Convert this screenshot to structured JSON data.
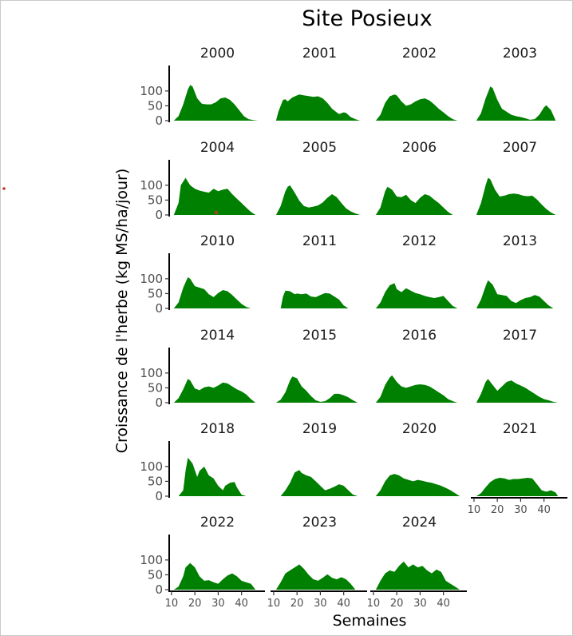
{
  "chart_data": {
    "type": "area",
    "title": "Site Posieux",
    "xlabel": "Semaines",
    "ylabel": "Croissance de l'herbe (kg MS/ha/jour)",
    "xlim": [
      9,
      49
    ],
    "ylim": [
      0,
      140
    ],
    "x_ticks": [
      10,
      20,
      30,
      40
    ],
    "y_ticks": [
      0,
      50,
      100
    ],
    "color": "#008000",
    "facets": [
      {
        "year": "2000",
        "x": [
          11,
          13,
          15,
          17,
          18,
          19,
          21,
          23,
          25,
          27,
          29,
          31,
          33,
          35,
          37,
          39,
          41,
          43,
          45,
          47
        ],
        "y": [
          0,
          15,
          55,
          105,
          120,
          115,
          75,
          57,
          55,
          55,
          62,
          75,
          78,
          70,
          55,
          35,
          15,
          5,
          2,
          0
        ]
      },
      {
        "year": "2001",
        "x": [
          11,
          12,
          14,
          15,
          16,
          18,
          20,
          21,
          23,
          25,
          27,
          29,
          31,
          33,
          35,
          37,
          38,
          40,
          41,
          43,
          45,
          47
        ],
        "y": [
          0,
          30,
          70,
          72,
          65,
          78,
          85,
          88,
          85,
          83,
          80,
          82,
          75,
          60,
          40,
          28,
          22,
          28,
          26,
          12,
          5,
          0
        ]
      },
      {
        "year": "2002",
        "x": [
          11,
          13,
          15,
          17,
          19,
          20,
          22,
          24,
          26,
          28,
          30,
          32,
          34,
          36,
          38,
          40,
          42,
          44,
          46
        ],
        "y": [
          0,
          20,
          60,
          82,
          88,
          85,
          65,
          50,
          55,
          65,
          72,
          75,
          68,
          55,
          40,
          28,
          15,
          5,
          0
        ]
      },
      {
        "year": "2003",
        "x": [
          11,
          13,
          15,
          17,
          18,
          20,
          22,
          24,
          26,
          28,
          30,
          32,
          34,
          36,
          38,
          40,
          41,
          43,
          45
        ],
        "y": [
          0,
          25,
          75,
          115,
          110,
          70,
          40,
          30,
          20,
          15,
          12,
          8,
          3,
          5,
          20,
          45,
          52,
          35,
          0
        ]
      },
      {
        "year": "2004",
        "x": [
          11,
          13,
          14,
          16,
          18,
          20,
          22,
          24,
          26,
          28,
          30,
          32,
          34,
          36,
          38,
          40,
          42,
          44,
          46
        ],
        "y": [
          0,
          40,
          100,
          125,
          100,
          88,
          82,
          78,
          75,
          88,
          80,
          85,
          88,
          70,
          55,
          40,
          25,
          10,
          0
        ]
      },
      {
        "year": "2005",
        "x": [
          11,
          13,
          15,
          16,
          17,
          19,
          21,
          23,
          25,
          27,
          29,
          31,
          33,
          35,
          37,
          39,
          41,
          43,
          45,
          47
        ],
        "y": [
          0,
          30,
          80,
          95,
          100,
          75,
          48,
          30,
          25,
          28,
          32,
          42,
          58,
          70,
          60,
          40,
          22,
          12,
          5,
          0
        ]
      },
      {
        "year": "2006",
        "x": [
          11,
          13,
          15,
          16,
          18,
          20,
          22,
          24,
          26,
          28,
          30,
          32,
          34,
          36,
          38,
          40,
          42,
          44
        ],
        "y": [
          0,
          25,
          80,
          95,
          85,
          62,
          60,
          68,
          50,
          40,
          58,
          70,
          65,
          52,
          40,
          25,
          10,
          0
        ]
      },
      {
        "year": "2007",
        "x": [
          11,
          13,
          15,
          16,
          17,
          19,
          21,
          23,
          25,
          27,
          29,
          31,
          33,
          35,
          37,
          39,
          41,
          43,
          45
        ],
        "y": [
          0,
          40,
          100,
          125,
          120,
          85,
          62,
          65,
          70,
          72,
          70,
          65,
          63,
          65,
          52,
          35,
          20,
          8,
          0
        ]
      },
      {
        "year": "2010",
        "x": [
          11,
          13,
          15,
          17,
          18,
          20,
          22,
          24,
          26,
          28,
          30,
          32,
          34,
          36,
          38,
          40,
          42,
          44
        ],
        "y": [
          0,
          20,
          70,
          105,
          100,
          75,
          70,
          65,
          48,
          38,
          52,
          62,
          58,
          45,
          30,
          15,
          5,
          0
        ]
      },
      {
        "year": "2011",
        "x": [
          13,
          14,
          15,
          17,
          19,
          20,
          22,
          24,
          26,
          28,
          30,
          32,
          34,
          36,
          38,
          40,
          42
        ],
        "y": [
          0,
          40,
          60,
          58,
          48,
          50,
          48,
          50,
          40,
          38,
          45,
          52,
          50,
          40,
          30,
          10,
          0
        ]
      },
      {
        "year": "2012",
        "x": [
          11,
          13,
          15,
          17,
          19,
          20,
          22,
          24,
          26,
          28,
          30,
          32,
          34,
          36,
          38,
          40,
          42,
          44,
          46
        ],
        "y": [
          0,
          20,
          55,
          78,
          85,
          65,
          55,
          68,
          60,
          52,
          48,
          42,
          38,
          35,
          38,
          42,
          25,
          8,
          0
        ]
      },
      {
        "year": "2013",
        "x": [
          11,
          13,
          15,
          16,
          18,
          20,
          22,
          24,
          26,
          28,
          30,
          32,
          34,
          36,
          38,
          40,
          42,
          44
        ],
        "y": [
          0,
          30,
          75,
          95,
          80,
          48,
          45,
          42,
          25,
          18,
          28,
          35,
          38,
          45,
          40,
          25,
          10,
          0
        ]
      },
      {
        "year": "2014",
        "x": [
          11,
          13,
          15,
          17,
          18,
          20,
          22,
          24,
          26,
          28,
          30,
          32,
          34,
          36,
          38,
          40,
          42,
          44,
          46
        ],
        "y": [
          0,
          15,
          45,
          80,
          75,
          48,
          42,
          52,
          55,
          50,
          58,
          68,
          65,
          55,
          45,
          38,
          28,
          12,
          0
        ]
      },
      {
        "year": "2015",
        "x": [
          11,
          13,
          15,
          17,
          18,
          20,
          22,
          24,
          26,
          28,
          30,
          32,
          34,
          36,
          38,
          40,
          42,
          44,
          46
        ],
        "y": [
          0,
          10,
          35,
          75,
          88,
          82,
          55,
          40,
          22,
          8,
          3,
          5,
          15,
          30,
          30,
          25,
          18,
          8,
          0
        ]
      },
      {
        "year": "2016",
        "x": [
          11,
          13,
          15,
          17,
          18,
          20,
          22,
          24,
          26,
          28,
          30,
          32,
          34,
          36,
          38,
          40,
          42,
          44,
          46
        ],
        "y": [
          0,
          20,
          60,
          85,
          92,
          70,
          55,
          50,
          55,
          60,
          62,
          60,
          55,
          45,
          35,
          25,
          12,
          5,
          0
        ]
      },
      {
        "year": "2017",
        "x": [
          11,
          13,
          15,
          16,
          18,
          20,
          22,
          24,
          26,
          28,
          30,
          32,
          34,
          36,
          38,
          40,
          42,
          44,
          46
        ],
        "y": [
          0,
          30,
          70,
          80,
          60,
          40,
          55,
          70,
          75,
          65,
          58,
          50,
          40,
          30,
          20,
          12,
          8,
          3,
          0
        ]
      },
      {
        "year": "2018",
        "x": [
          13,
          15,
          16,
          17,
          19,
          21,
          22,
          24,
          26,
          28,
          30,
          32,
          33,
          35,
          37,
          38,
          40,
          42
        ],
        "y": [
          0,
          20,
          85,
          130,
          110,
          65,
          85,
          100,
          70,
          60,
          35,
          20,
          35,
          45,
          48,
          30,
          5,
          0
        ]
      },
      {
        "year": "2019",
        "x": [
          13,
          15,
          17,
          19,
          21,
          22,
          24,
          26,
          28,
          30,
          32,
          34,
          36,
          38,
          40,
          42,
          44,
          46
        ],
        "y": [
          0,
          20,
          45,
          80,
          88,
          78,
          70,
          65,
          50,
          35,
          20,
          25,
          32,
          40,
          35,
          20,
          5,
          0
        ]
      },
      {
        "year": "2020",
        "x": [
          11,
          13,
          15,
          17,
          19,
          21,
          23,
          25,
          27,
          29,
          31,
          33,
          35,
          37,
          39,
          41,
          43,
          45,
          47
        ],
        "y": [
          0,
          20,
          50,
          70,
          75,
          70,
          60,
          55,
          50,
          55,
          52,
          48,
          45,
          40,
          35,
          28,
          20,
          10,
          0
        ]
      },
      {
        "year": "2021",
        "x": [
          11,
          13,
          15,
          17,
          19,
          21,
          23,
          25,
          27,
          29,
          31,
          33,
          35,
          37,
          39,
          41,
          43,
          45,
          46
        ],
        "y": [
          0,
          10,
          30,
          48,
          58,
          62,
          60,
          55,
          58,
          58,
          60,
          62,
          60,
          40,
          20,
          15,
          20,
          12,
          0
        ]
      },
      {
        "year": "2022",
        "x": [
          11,
          13,
          15,
          16,
          18,
          20,
          22,
          24,
          26,
          28,
          30,
          32,
          34,
          36,
          38,
          40,
          42,
          44,
          46
        ],
        "y": [
          0,
          10,
          45,
          75,
          90,
          75,
          45,
          30,
          32,
          25,
          20,
          35,
          48,
          55,
          45,
          30,
          25,
          20,
          0
        ]
      },
      {
        "year": "2023",
        "x": [
          11,
          13,
          15,
          17,
          19,
          21,
          23,
          25,
          27,
          29,
          31,
          33,
          35,
          37,
          39,
          41,
          43,
          45
        ],
        "y": [
          0,
          25,
          55,
          65,
          75,
          85,
          70,
          50,
          35,
          30,
          40,
          52,
          40,
          35,
          42,
          35,
          20,
          0
        ]
      },
      {
        "year": "2024",
        "x": [
          11,
          13,
          15,
          17,
          19,
          21,
          23,
          25,
          27,
          29,
          31,
          33,
          35,
          37,
          39,
          41,
          43,
          45,
          47
        ],
        "y": [
          0,
          30,
          55,
          65,
          60,
          80,
          95,
          75,
          85,
          75,
          80,
          65,
          55,
          68,
          60,
          30,
          20,
          10,
          0
        ]
      }
    ]
  }
}
